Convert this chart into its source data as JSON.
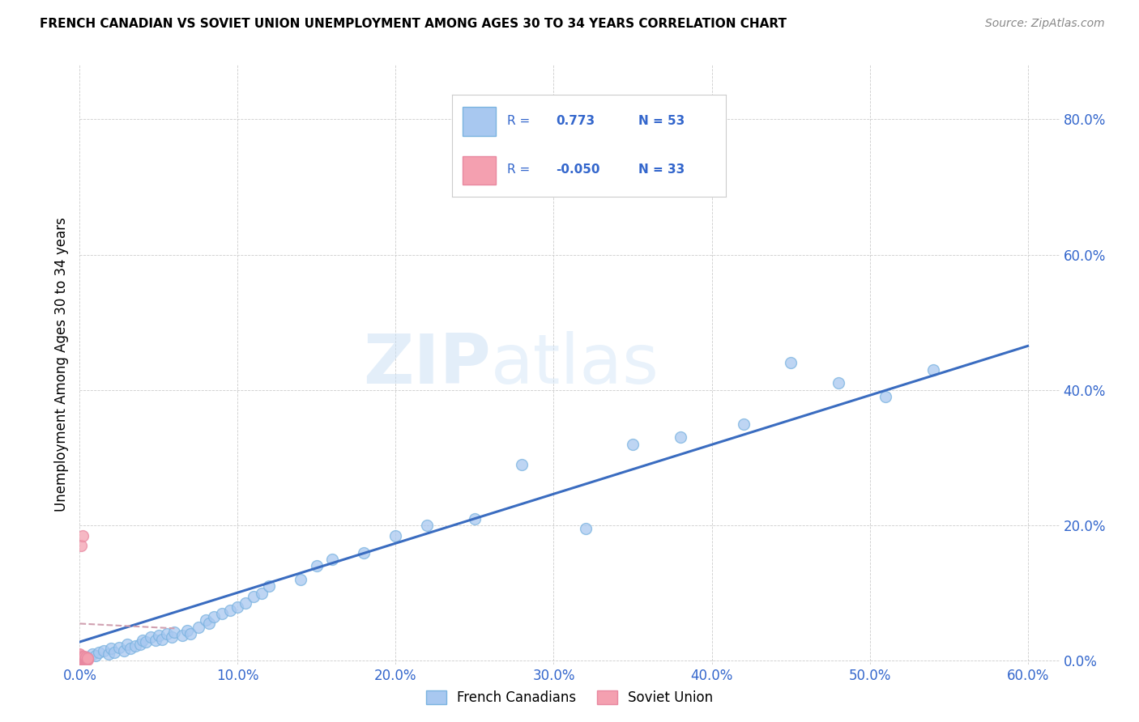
{
  "title": "FRENCH CANADIAN VS SOVIET UNION UNEMPLOYMENT AMONG AGES 30 TO 34 YEARS CORRELATION CHART",
  "source": "Source: ZipAtlas.com",
  "ylabel_label": "Unemployment Among Ages 30 to 34 years",
  "xlim": [
    0.0,
    0.62
  ],
  "ylim": [
    -0.005,
    0.88
  ],
  "watermark_line1": "ZIP",
  "watermark_line2": "atlas",
  "blue_scatter_x": [
    0.005,
    0.008,
    0.01,
    0.012,
    0.015,
    0.018,
    0.02,
    0.022,
    0.025,
    0.028,
    0.03,
    0.032,
    0.035,
    0.038,
    0.04,
    0.042,
    0.045,
    0.048,
    0.05,
    0.052,
    0.055,
    0.058,
    0.06,
    0.065,
    0.068,
    0.07,
    0.075,
    0.08,
    0.082,
    0.085,
    0.09,
    0.095,
    0.1,
    0.105,
    0.11,
    0.115,
    0.12,
    0.14,
    0.15,
    0.16,
    0.18,
    0.2,
    0.22,
    0.25,
    0.28,
    0.32,
    0.35,
    0.38,
    0.42,
    0.45,
    0.48,
    0.51,
    0.54
  ],
  "blue_scatter_y": [
    0.005,
    0.01,
    0.008,
    0.012,
    0.015,
    0.01,
    0.018,
    0.013,
    0.02,
    0.015,
    0.025,
    0.018,
    0.022,
    0.025,
    0.03,
    0.028,
    0.035,
    0.03,
    0.038,
    0.032,
    0.04,
    0.035,
    0.042,
    0.038,
    0.045,
    0.04,
    0.05,
    0.06,
    0.055,
    0.065,
    0.07,
    0.075,
    0.08,
    0.085,
    0.095,
    0.1,
    0.11,
    0.12,
    0.14,
    0.15,
    0.16,
    0.185,
    0.2,
    0.21,
    0.29,
    0.195,
    0.32,
    0.33,
    0.35,
    0.44,
    0.41,
    0.39,
    0.43
  ],
  "pink_scatter_x": [
    0.0,
    0.0,
    0.0,
    0.0,
    0.0,
    0.0,
    0.0,
    0.0,
    0.0,
    0.0,
    0.001,
    0.001,
    0.001,
    0.001,
    0.001,
    0.002,
    0.002,
    0.002,
    0.002,
    0.002,
    0.002,
    0.003,
    0.003,
    0.003,
    0.003,
    0.003,
    0.004,
    0.004,
    0.004,
    0.004,
    0.005,
    0.005,
    0.005
  ],
  "pink_scatter_y": [
    0.001,
    0.002,
    0.003,
    0.004,
    0.005,
    0.006,
    0.007,
    0.008,
    0.009,
    0.01,
    0.002,
    0.003,
    0.004,
    0.005,
    0.17,
    0.002,
    0.003,
    0.004,
    0.005,
    0.006,
    0.185,
    0.002,
    0.003,
    0.004,
    0.005,
    0.006,
    0.002,
    0.003,
    0.004,
    0.005,
    0.002,
    0.003,
    0.004
  ],
  "blue_line_x": [
    0.0,
    0.6
  ],
  "blue_line_y": [
    0.028,
    0.465
  ],
  "pink_line_x": [
    0.0,
    0.06
  ],
  "pink_line_y": [
    0.055,
    0.048
  ],
  "blue_scatter_color": "#a8c8f0",
  "blue_scatter_edge": "#7ab3e0",
  "pink_scatter_color": "#f4a0b0",
  "pink_scatter_edge": "#e888a0",
  "blue_line_color": "#3a6cc0",
  "pink_line_color": "#d0a0b0",
  "grid_color": "#cccccc",
  "background_color": "#ffffff",
  "scatter_size": 100,
  "xtick_vals": [
    0.0,
    0.1,
    0.2,
    0.3,
    0.4,
    0.5,
    0.6
  ],
  "ytick_vals": [
    0.0,
    0.2,
    0.4,
    0.6,
    0.8
  ],
  "tick_color": "#3366cc",
  "tick_fontsize": 12
}
